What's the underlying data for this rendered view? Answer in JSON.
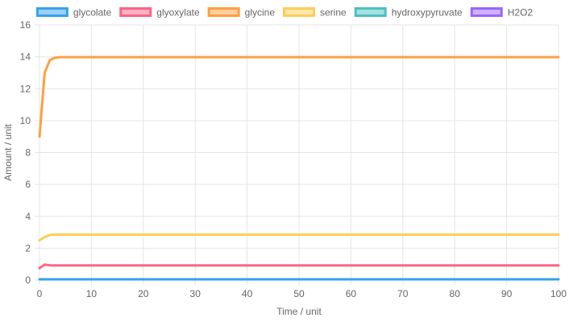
{
  "chart_data": {
    "type": "line",
    "xlabel": "Time / unit",
    "ylabel": "Amount / unit",
    "xlim": [
      0,
      100
    ],
    "ylim": [
      0,
      16
    ],
    "xticks": [
      0,
      10,
      20,
      30,
      40,
      50,
      60,
      70,
      80,
      90,
      100
    ],
    "yticks": [
      0,
      2,
      4,
      6,
      8,
      10,
      12,
      14,
      16
    ],
    "grid": true,
    "legend_position": "top",
    "series": [
      {
        "name": "glycolate",
        "color": "#36a2eb",
        "fill": "#9ad0f5",
        "x": [
          0,
          1,
          2,
          3,
          4,
          5,
          100
        ],
        "y": [
          0.05,
          0.05,
          0.05,
          0.05,
          0.05,
          0.05,
          0.05
        ]
      },
      {
        "name": "glyoxylate",
        "color": "#ff6384",
        "fill": "#ffb1c1",
        "x": [
          0,
          1,
          2,
          3,
          4,
          5,
          100
        ],
        "y": [
          0.75,
          0.97,
          0.93,
          0.92,
          0.92,
          0.92,
          0.92
        ]
      },
      {
        "name": "glycine",
        "color": "#ff9f40",
        "fill": "#ffcf9f",
        "x": [
          0,
          1,
          2,
          3,
          4,
          5,
          100
        ],
        "y": [
          9.0,
          13.0,
          13.8,
          13.95,
          13.98,
          13.98,
          13.98
        ]
      },
      {
        "name": "serine",
        "color": "#ffcd56",
        "fill": "#ffe6aa",
        "x": [
          0,
          1,
          2,
          3,
          4,
          5,
          100
        ],
        "y": [
          2.5,
          2.7,
          2.83,
          2.85,
          2.85,
          2.85,
          2.85
        ]
      },
      {
        "name": "hydroxypyruvate",
        "color": "#4bc0c0",
        "fill": "#a5dfdf",
        "x": [],
        "y": []
      },
      {
        "name": "H2O2",
        "color": "#9966ff",
        "fill": "#ccb2ff",
        "x": [],
        "y": []
      }
    ]
  }
}
